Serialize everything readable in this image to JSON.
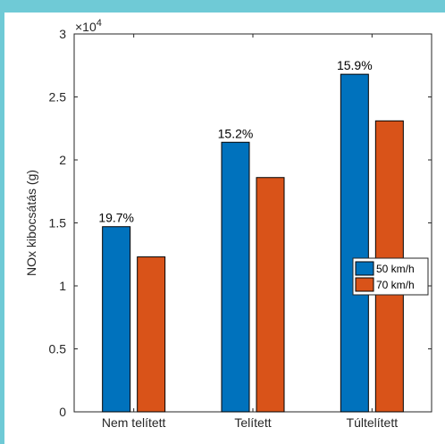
{
  "chart_data": {
    "type": "bar",
    "categories": [
      "Nem telített",
      "Telített",
      "Túltelített"
    ],
    "series": [
      {
        "name": "50 km/h",
        "values": [
          14700,
          21400,
          26800
        ],
        "color": "#0072bd"
      },
      {
        "name": "70 km/h",
        "values": [
          12300,
          18600,
          23100
        ],
        "color": "#d95319"
      }
    ],
    "data_labels": [
      "19.7%",
      "15.2%",
      "15.9%"
    ],
    "ylabel": "NOx kibocsátás (g)",
    "xlabel": "",
    "ylim": [
      0,
      30000
    ],
    "yticks": [
      0,
      5000,
      10000,
      15000,
      20000,
      25000,
      30000
    ],
    "ytick_labels": [
      "0",
      "0.5",
      "1",
      "1.5",
      "2",
      "2.5",
      "3"
    ],
    "y_exponent_label": "×10",
    "y_exponent_power": "4",
    "grid": false,
    "legend_position": "right"
  }
}
